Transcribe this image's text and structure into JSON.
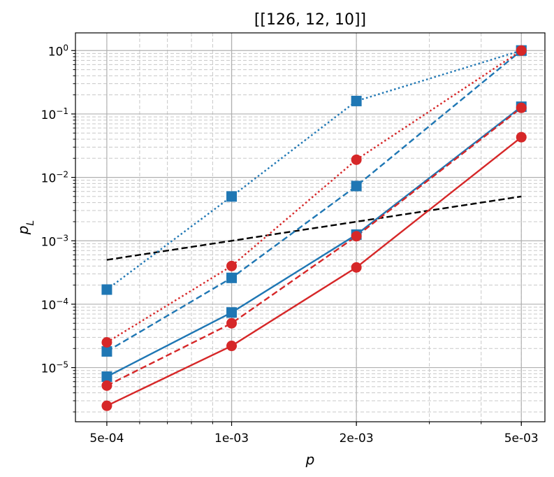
{
  "chart_data": {
    "type": "line",
    "title": "[[126, 12, 10]]",
    "xlabel": "p",
    "ylabel": "p_L",
    "x_scale": "log",
    "y_scale": "log",
    "xlim": [
      0.00042,
      0.0057
    ],
    "ylim": [
      1.4e-06,
      1.9
    ],
    "grid": true,
    "x": [
      0.0005,
      0.001,
      0.002,
      0.005
    ],
    "x_tick_labels": [
      "5e-04",
      "1e-03",
      "2e-03",
      "5e-03"
    ],
    "y_tick_labels": [
      {
        "value": 1e-05,
        "base": "10",
        "exp": "−5"
      },
      {
        "value": 0.0001,
        "base": "10",
        "exp": "−4"
      },
      {
        "value": 0.001,
        "base": "10",
        "exp": "−3"
      },
      {
        "value": 0.01,
        "base": "10",
        "exp": "−2"
      },
      {
        "value": 0.1,
        "base": "10",
        "exp": "−1"
      },
      {
        "value": 1,
        "base": "10",
        "exp": "0"
      }
    ],
    "series": [
      {
        "color": "#000000",
        "dash": "dashed",
        "marker": "none",
        "values": [
          0.0005,
          0.001,
          0.002,
          0.005
        ]
      },
      {
        "color": "#1f77b4",
        "dash": "dotted",
        "marker": "square",
        "values": [
          0.00017,
          0.005,
          0.16,
          1.0
        ]
      },
      {
        "color": "#1f77b4",
        "dash": "dashed",
        "marker": "square",
        "values": [
          1.8e-05,
          0.00026,
          0.0073,
          1.0
        ]
      },
      {
        "color": "#1f77b4",
        "dash": "solid",
        "marker": "square",
        "values": [
          7.2e-06,
          7.4e-05,
          0.00125,
          0.13
        ]
      },
      {
        "color": "#d62728",
        "dash": "dotted",
        "marker": "circle",
        "values": [
          2.5e-05,
          0.0004,
          0.019,
          1.0
        ]
      },
      {
        "color": "#d62728",
        "dash": "dashed",
        "marker": "circle",
        "values": [
          5.2e-06,
          5e-05,
          0.00118,
          0.125
        ]
      },
      {
        "color": "#d62728",
        "dash": "solid",
        "marker": "circle",
        "values": [
          2.5e-06,
          2.2e-05,
          0.00038,
          0.043
        ]
      }
    ]
  }
}
